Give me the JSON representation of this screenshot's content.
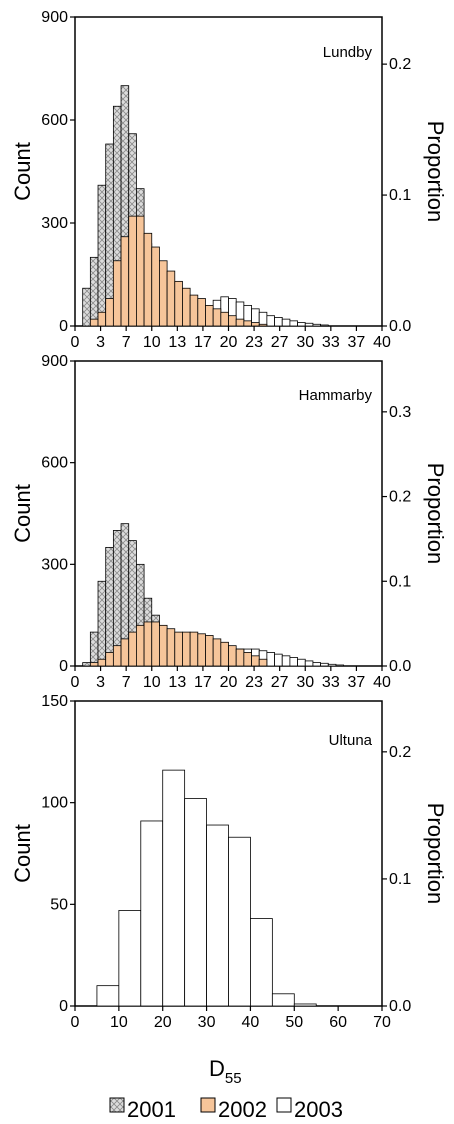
{
  "colors": {
    "y2001_fill": "#dcdcdc",
    "y2001_hatch": "#8a8a8a",
    "y2002": "#f6c59a",
    "y2003": "#ffffff",
    "axis": "#000000"
  },
  "xlabel_main": "D",
  "xlabel_sub": "55",
  "legend": [
    {
      "key": "y2001",
      "label": "2001",
      "icon": "hatched-box"
    },
    {
      "key": "y2002",
      "label": "2002",
      "icon": "orange-box"
    },
    {
      "key": "y2003",
      "label": "2003",
      "icon": "white-box"
    }
  ],
  "chart_data": [
    {
      "type": "bar",
      "site": "Lundby",
      "ylabel": "Count",
      "y2label": "Proportion",
      "xlim": [
        0,
        40
      ],
      "ylim": [
        0,
        900
      ],
      "xticks": [
        "0",
        "3",
        "7",
        "10",
        "13",
        "17",
        "20",
        "23",
        "27",
        "30",
        "33",
        "37",
        "40"
      ],
      "yticks": [
        "0",
        "300",
        "600",
        "900"
      ],
      "y2ticks": [
        "0.0",
        "0.1",
        "0.2"
      ],
      "bin_start": 1,
      "bin_width": 1,
      "series": [
        {
          "name": "2001",
          "values": [
            110,
            200,
            410,
            530,
            640,
            700,
            560,
            400,
            240,
            110,
            40,
            10
          ]
        },
        {
          "name": "2002",
          "values": [
            0,
            20,
            40,
            80,
            190,
            260,
            320,
            320,
            270,
            230,
            190,
            160,
            130,
            110,
            90,
            80,
            60,
            50,
            40,
            30,
            20,
            15,
            10,
            5
          ]
        },
        {
          "name": "2003",
          "values": [
            0,
            0,
            0,
            0,
            0,
            0,
            0,
            0,
            0,
            0,
            0,
            0,
            0,
            0,
            0,
            0,
            60,
            75,
            85,
            80,
            70,
            60,
            50,
            40,
            30,
            25,
            20,
            15,
            10,
            8,
            5,
            3
          ]
        }
      ]
    },
    {
      "type": "bar",
      "site": "Hammarby",
      "ylabel": "Count",
      "y2label": "Proportion",
      "xlim": [
        0,
        40
      ],
      "ylim": [
        0,
        900
      ],
      "xticks": [
        "0",
        "3",
        "7",
        "10",
        "13",
        "17",
        "20",
        "23",
        "27",
        "30",
        "33",
        "37",
        "40"
      ],
      "yticks": [
        "0",
        "300",
        "600",
        "900"
      ],
      "y2ticks": [
        "0.0",
        "0.1",
        "0.2",
        "0.3"
      ],
      "bin_start": 1,
      "bin_width": 1,
      "series": [
        {
          "name": "2001",
          "values": [
            10,
            100,
            250,
            350,
            400,
            420,
            370,
            300,
            200,
            150,
            100,
            55,
            25
          ]
        },
        {
          "name": "2002",
          "values": [
            0,
            10,
            20,
            40,
            60,
            80,
            100,
            120,
            130,
            130,
            120,
            110,
            100,
            100,
            100,
            95,
            90,
            80,
            70,
            60,
            50,
            40,
            30,
            20
          ]
        },
        {
          "name": "2003",
          "values": [
            0,
            0,
            0,
            0,
            0,
            10,
            15,
            20,
            25,
            30,
            40,
            50,
            60,
            60,
            60,
            58,
            55,
            50,
            50,
            50,
            50,
            50,
            50,
            45,
            40,
            35,
            30,
            25,
            20,
            15,
            10,
            8,
            5,
            3
          ]
        }
      ]
    },
    {
      "type": "bar",
      "site": "Ultuna",
      "ylabel": "Count",
      "y2label": "Proportion",
      "xlim": [
        0,
        70
      ],
      "ylim": [
        0,
        150
      ],
      "xticks": [
        "0",
        "10",
        "20",
        "30",
        "40",
        "50",
        "60",
        "70"
      ],
      "yticks": [
        "0",
        "50",
        "100",
        "150"
      ],
      "y2ticks": [
        "0.0",
        "0.1",
        "0.2"
      ],
      "bin_start": 5,
      "bin_width": 5,
      "series": [
        {
          "name": "2003",
          "values": [
            10,
            47,
            91,
            116,
            102,
            89,
            83,
            43,
            6,
            1
          ]
        }
      ]
    }
  ]
}
